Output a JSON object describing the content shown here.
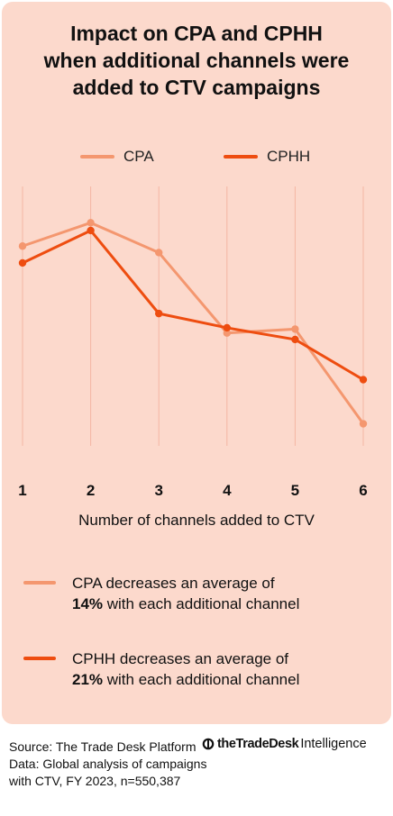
{
  "title_lines": [
    "Impact on CPA and CPHH",
    "when additional channels were",
    "added to CTV campaigns"
  ],
  "colors": {
    "background": "#fcd9cc",
    "cpa": "#f4976f",
    "cphh": "#ee4d10",
    "grid": "#f4b6a3"
  },
  "legend": {
    "cpa": "CPA",
    "cphh": "CPHH"
  },
  "chart_data": {
    "type": "line",
    "x": [
      1,
      2,
      3,
      4,
      5,
      6
    ],
    "xlabel": "Number of channels added to CTV",
    "ylabel": "",
    "ylim": [
      0,
      100
    ],
    "grid": "vertical",
    "legend_position": "top",
    "series": [
      {
        "name": "CPA",
        "values": [
          77,
          86,
          74.5,
          43.5,
          45,
          8.5
        ]
      },
      {
        "name": "CPHH",
        "values": [
          70.5,
          83,
          51,
          45.5,
          41,
          25.5
        ]
      }
    ]
  },
  "notes": [
    {
      "line1": "CPA decreases an average of",
      "bold": "14%",
      "rest": " with each additional channel"
    },
    {
      "line1": "CPHH decreases an average of",
      "bold": "21%",
      "rest": " with each additional channel"
    }
  ],
  "source": "Source: The Trade Desk Platform Data: Global analysis of campaigns with CTV, FY 2023, n=550,387",
  "brand": {
    "name": "theTradeDesk",
    "sub": "Intelligence"
  }
}
